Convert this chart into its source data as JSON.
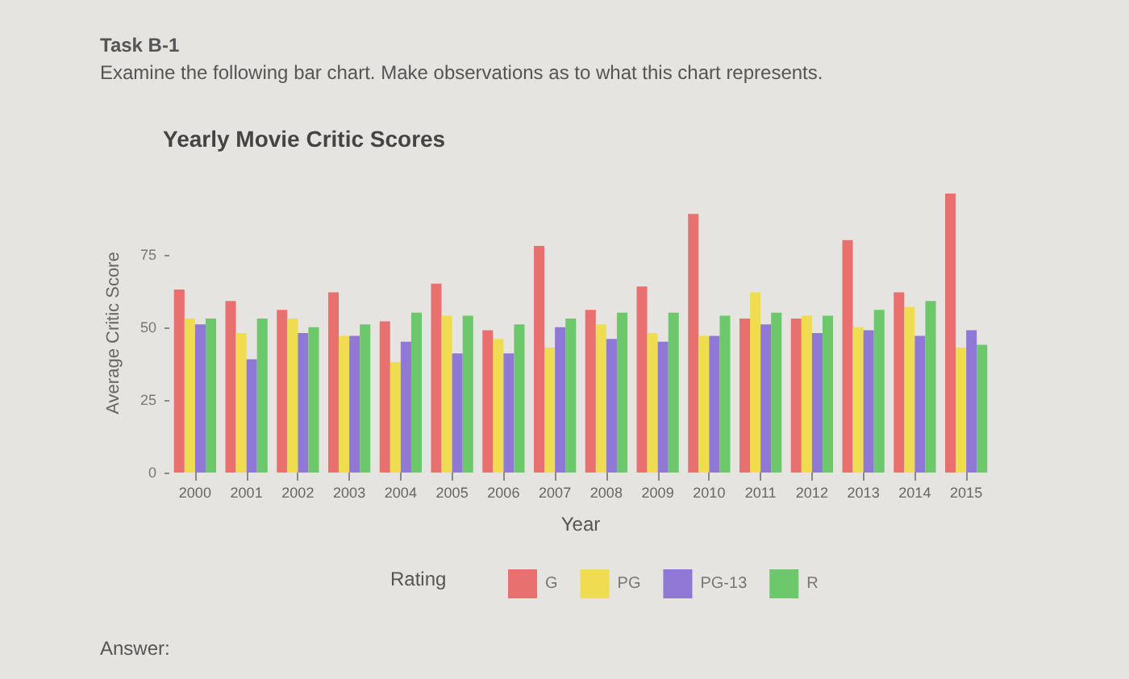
{
  "chart_data": {
    "type": "bar",
    "title": "Yearly Movie Critic Scores",
    "xlabel": "Year",
    "ylabel": "Average Critic Score",
    "legend_title": "Rating",
    "annotations": [
      "Task B-1",
      "Examine the following bar chart. Make observations as to what this chart represents.",
      "Answer:"
    ],
    "categories": [
      "2000",
      "2001",
      "2002",
      "2003",
      "2004",
      "2005",
      "2006",
      "2007",
      "2008",
      "2009",
      "2010",
      "2011",
      "2012",
      "2013",
      "2014",
      "2015"
    ],
    "series": [
      {
        "name": "G",
        "color": "#e8716f",
        "values": [
          63,
          59,
          56,
          62,
          52,
          65,
          49,
          78,
          56,
          64,
          89,
          53,
          53,
          80,
          62,
          96
        ]
      },
      {
        "name": "PG",
        "color": "#f0dc50",
        "values": [
          53,
          48,
          53,
          47,
          38,
          54,
          46,
          43,
          51,
          48,
          47,
          62,
          54,
          50,
          57,
          43
        ]
      },
      {
        "name": "PG-13",
        "color": "#8f78d6",
        "values": [
          51,
          39,
          48,
          47,
          45,
          41,
          41,
          50,
          46,
          45,
          47,
          51,
          48,
          49,
          47,
          49
        ]
      },
      {
        "name": "R",
        "color": "#6cc86a",
        "values": [
          53,
          53,
          50,
          51,
          55,
          54,
          51,
          53,
          55,
          55,
          54,
          55,
          54,
          56,
          59,
          44
        ]
      }
    ],
    "ylim": [
      0,
      96
    ],
    "yticks": [
      0,
      25,
      50,
      75
    ],
    "grid": false,
    "legend": "bottom"
  }
}
